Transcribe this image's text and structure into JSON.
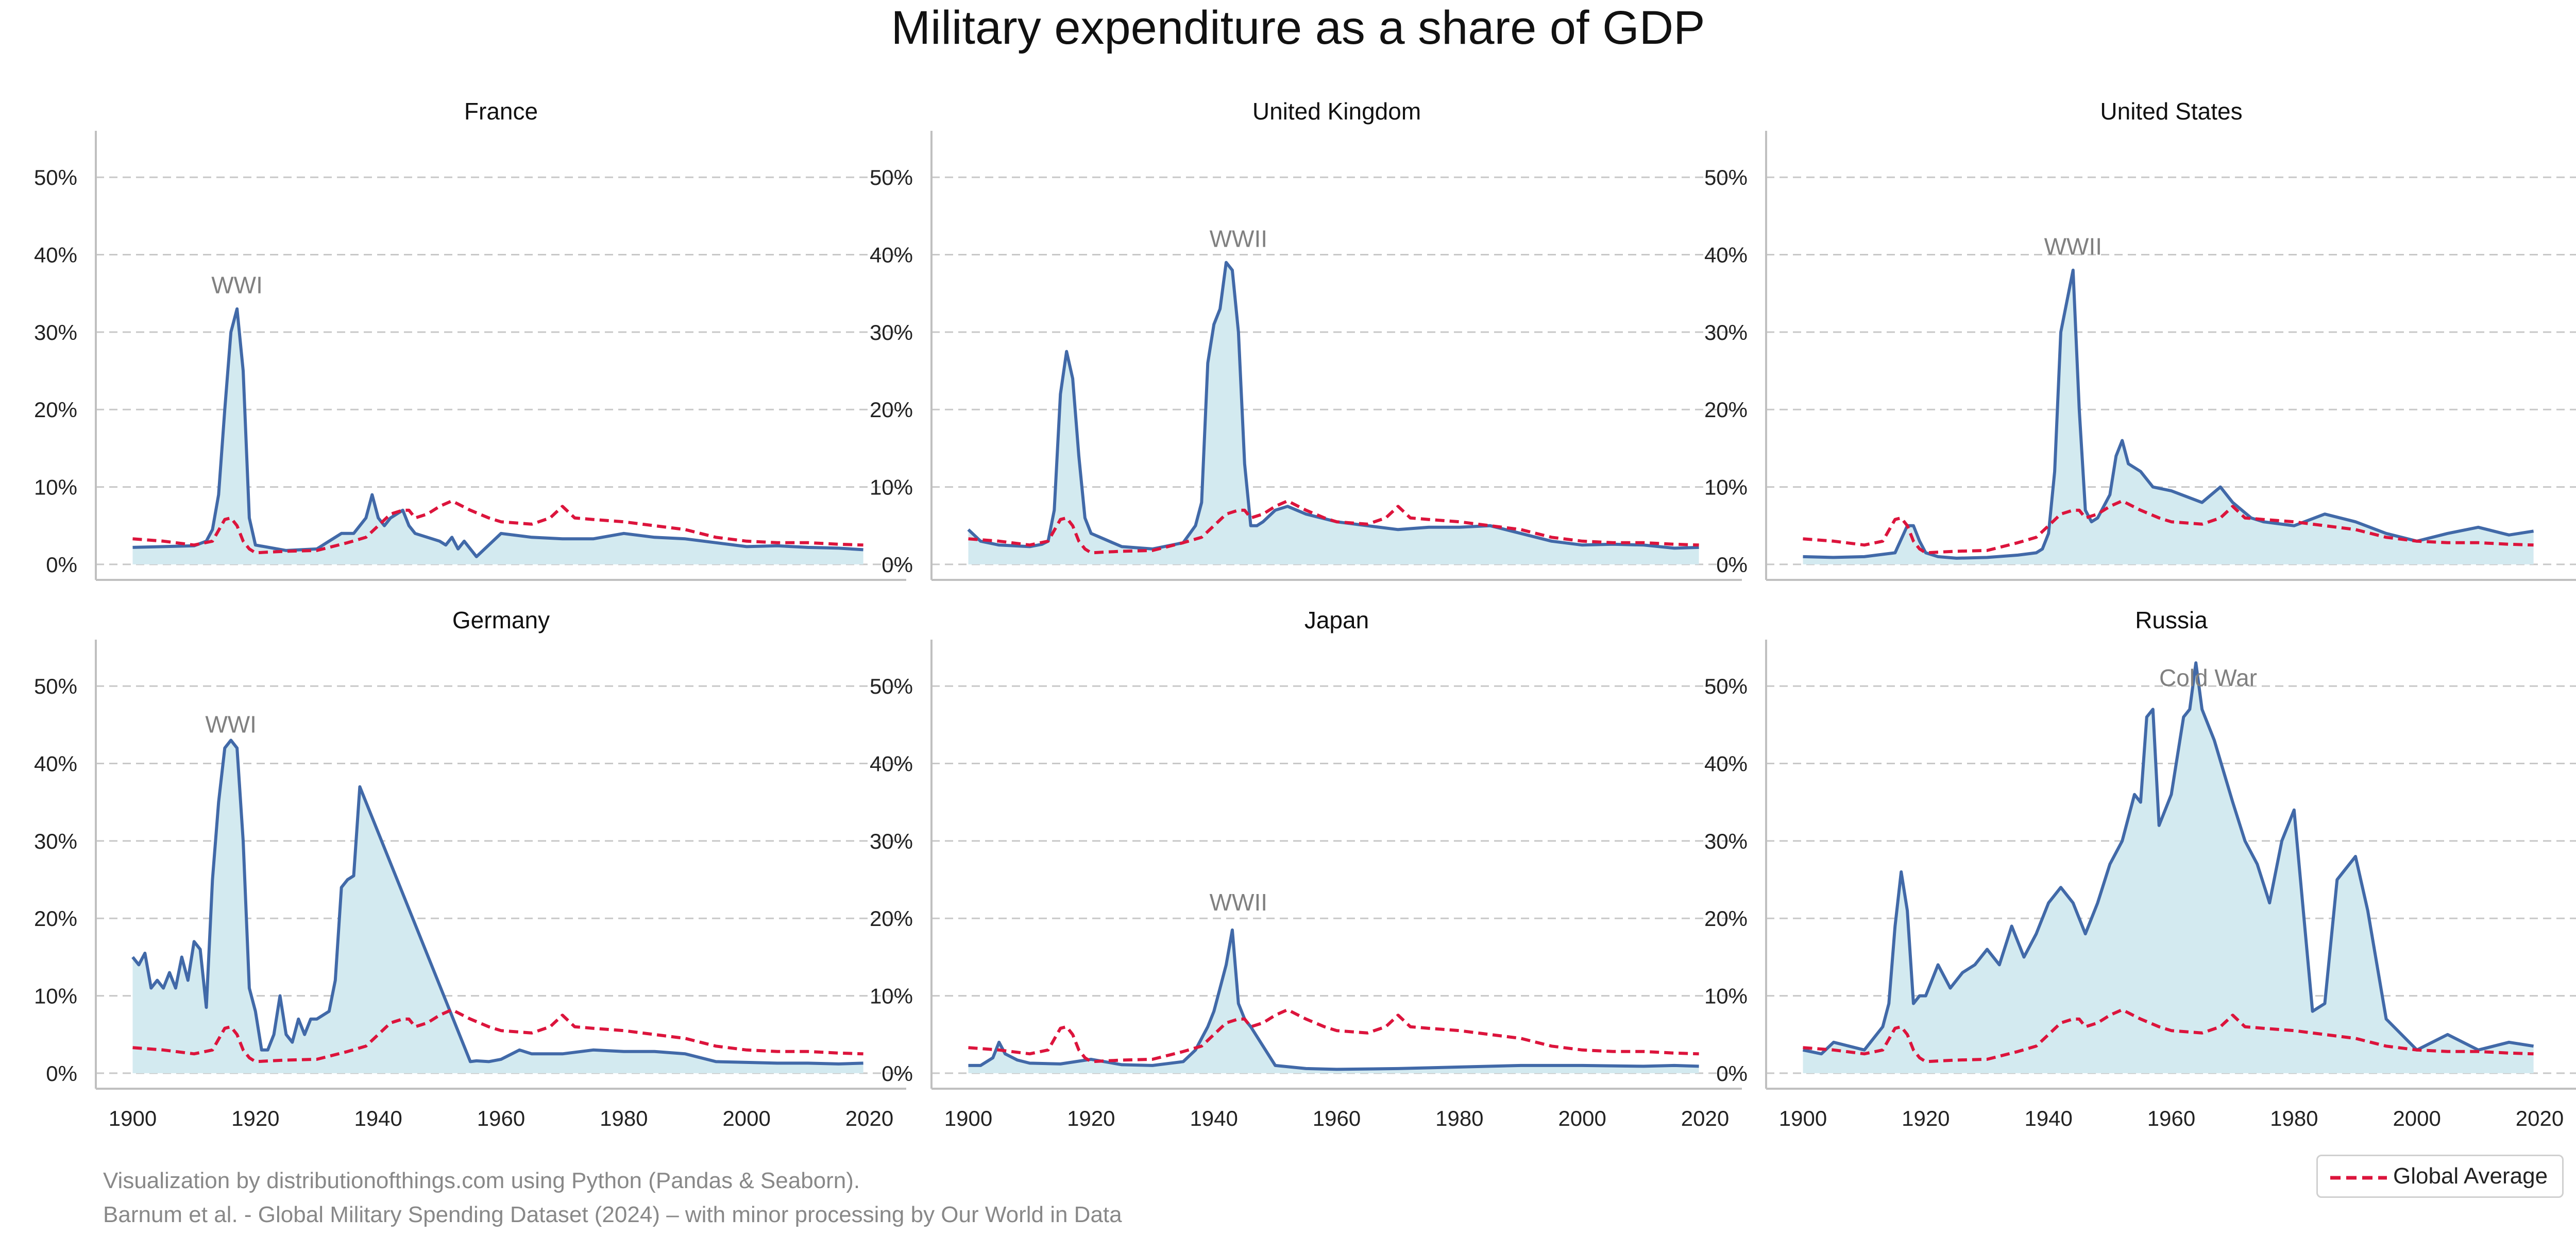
{
  "title": "Military expenditure as a share of GDP",
  "credits": [
    "Visualization by distributionofthings.com using Python (Pandas & Seaborn).",
    "Barnum et al. - Global Military Spending Dataset (2024) – with minor processing by Our World in Data"
  ],
  "legend": {
    "label": "Global Average"
  },
  "colors": {
    "country_line": "#4169a8",
    "country_fill": "#d3eaf0",
    "global_line": "#dc143c",
    "grid": "#c8c8c8",
    "annotation": "#808080"
  },
  "chart_data": [
    {
      "type": "area",
      "title": "France",
      "ylim": [
        -2,
        56
      ],
      "xlim": [
        1894,
        2026
      ],
      "yticks": [
        0,
        10,
        20,
        30,
        40,
        50
      ],
      "ytick_labels": [
        "0%",
        "10%",
        "20%",
        "30%",
        "40%",
        "50%"
      ],
      "xticks": [
        1900,
        1920,
        1940,
        1960,
        1980,
        2000,
        2020
      ],
      "grid": "y-dashed",
      "annotation": {
        "text": "WWI",
        "x": 1917,
        "y": 35
      },
      "series": [
        {
          "x": [
            1900,
            1905,
            1910,
            1912,
            1913,
            1914,
            1915,
            1916,
            1917,
            1918,
            1919,
            1920,
            1925,
            1930,
            1932,
            1934,
            1936,
            1938,
            1939,
            1940,
            1941,
            1942,
            1944,
            1945,
            1946,
            1948,
            1950,
            1951,
            1952,
            1953,
            1954,
            1955,
            1956,
            1960,
            1965,
            1970,
            1975,
            1980,
            1985,
            1990,
            1995,
            2000,
            2005,
            2010,
            2015,
            2019
          ],
          "values": [
            2.2,
            2.3,
            2.4,
            3,
            4.5,
            9,
            20,
            30,
            33,
            25,
            6,
            2.5,
            1.8,
            2,
            3,
            4,
            4,
            6,
            9,
            6,
            5,
            6,
            7,
            5,
            4,
            3.5,
            3,
            2.5,
            3.5,
            2,
            3,
            2,
            1,
            4,
            3.5,
            3.3,
            3.3,
            4,
            3.5,
            3.3,
            2.8,
            2.3,
            2.4,
            2.2,
            2.1,
            1.9
          ]
        }
      ]
    },
    {
      "type": "area",
      "title": "United Kingdom",
      "ylim": [
        -2,
        56
      ],
      "xlim": [
        1894,
        2026
      ],
      "yticks": [
        0,
        10,
        20,
        30,
        40,
        50
      ],
      "ytick_labels": [
        "0%",
        "10%",
        "20%",
        "30%",
        "40%",
        "50%"
      ],
      "xticks": [
        1900,
        1920,
        1940,
        1960,
        1980,
        2000,
        2020
      ],
      "grid": "y-dashed",
      "annotation": {
        "text": "WWII",
        "x": 1944,
        "y": 41
      },
      "series": [
        {
          "x": [
            1900,
            1902,
            1905,
            1910,
            1912,
            1913,
            1914,
            1915,
            1916,
            1917,
            1918,
            1919,
            1920,
            1925,
            1930,
            1935,
            1937,
            1938,
            1939,
            1940,
            1941,
            1942,
            1943,
            1944,
            1945,
            1946,
            1947,
            1948,
            1950,
            1952,
            1955,
            1960,
            1965,
            1970,
            1975,
            1980,
            1985,
            1990,
            1995,
            2000,
            2005,
            2010,
            2015,
            2019
          ],
          "values": [
            4.5,
            3,
            2.5,
            2.3,
            2.6,
            3,
            7,
            22,
            27.5,
            24,
            14,
            6,
            4,
            2.3,
            2,
            2.8,
            5,
            8,
            26,
            31,
            33,
            39,
            38,
            30,
            13,
            5,
            5,
            5.5,
            7,
            7.5,
            6.5,
            5.5,
            5,
            4.5,
            4.8,
            4.8,
            5,
            4,
            3,
            2.5,
            2.6,
            2.5,
            2.1,
            2.2
          ]
        }
      ]
    },
    {
      "type": "area",
      "title": "United States",
      "ylim": [
        -2,
        56
      ],
      "xlim": [
        1894,
        2026
      ],
      "yticks": [
        0,
        10,
        20,
        30,
        40,
        50
      ],
      "ytick_labels": [
        "0%",
        "10%",
        "20%",
        "30%",
        "40%",
        "50%"
      ],
      "xticks": [
        1900,
        1920,
        1940,
        1960,
        1980,
        2000,
        2020
      ],
      "grid": "y-dashed",
      "annotation": {
        "text": "WWII",
        "x": 1944,
        "y": 40
      },
      "series": [
        {
          "x": [
            1900,
            1905,
            1910,
            1915,
            1917,
            1918,
            1919,
            1920,
            1922,
            1925,
            1930,
            1935,
            1938,
            1939,
            1940,
            1941,
            1942,
            1943,
            1944,
            1945,
            1946,
            1947,
            1948,
            1950,
            1951,
            1952,
            1953,
            1955,
            1957,
            1960,
            1965,
            1968,
            1970,
            1973,
            1975,
            1980,
            1985,
            1990,
            1995,
            2000,
            2005,
            2010,
            2015,
            2019
          ],
          "values": [
            1,
            0.9,
            1,
            1.5,
            5,
            5,
            3,
            1.5,
            1,
            0.8,
            0.9,
            1.2,
            1.5,
            2,
            4,
            12,
            30,
            34,
            38,
            20,
            7,
            5.5,
            6,
            9,
            14,
            16,
            13,
            12,
            10,
            9.5,
            8,
            10,
            8,
            6,
            5.5,
            5,
            6.5,
            5.5,
            4,
            3,
            4,
            4.8,
            3.8,
            4.3
          ]
        }
      ]
    },
    {
      "type": "area",
      "title": "Germany",
      "ylim": [
        -2,
        56
      ],
      "xlim": [
        1894,
        2026
      ],
      "yticks": [
        0,
        10,
        20,
        30,
        40,
        50
      ],
      "ytick_labels": [
        "0%",
        "10%",
        "20%",
        "30%",
        "40%",
        "50%"
      ],
      "xticks": [
        1900,
        1920,
        1940,
        1960,
        1980,
        2000,
        2020
      ],
      "grid": "y-dashed",
      "annotation": {
        "text": "WWI",
        "x": 1916,
        "y": 44
      },
      "series": [
        {
          "x": [
            1900,
            1901,
            1902,
            1903,
            1904,
            1905,
            1906,
            1907,
            1908,
            1909,
            1910,
            1911,
            1912,
            1913,
            1914,
            1915,
            1916,
            1917,
            1918,
            1919,
            1920,
            1921,
            1922,
            1923,
            1924,
            1925,
            1926,
            1927,
            1928,
            1929,
            1930,
            1931,
            1932,
            1933,
            1934,
            1935,
            1936,
            1937,
            1955,
            1956,
            1958,
            1960,
            1963,
            1965,
            1970,
            1975,
            1980,
            1985,
            1990,
            1995,
            2000,
            2005,
            2010,
            2015,
            2019
          ],
          "values": [
            15,
            14,
            15.5,
            11,
            12,
            11,
            13,
            11,
            15,
            12,
            17,
            16,
            8.5,
            25,
            35,
            42,
            43,
            42,
            30,
            11,
            8,
            3,
            3,
            5,
            10,
            5,
            4,
            7,
            5,
            7,
            7,
            7.5,
            8,
            12,
            24,
            25,
            25.5,
            37,
            1.5,
            1.6,
            1.5,
            1.8,
            3,
            2.5,
            2.5,
            3,
            2.8,
            2.8,
            2.5,
            1.5,
            1.4,
            1.3,
            1.3,
            1.2,
            1.3
          ]
        }
      ]
    },
    {
      "type": "area",
      "title": "Japan",
      "ylim": [
        -2,
        56
      ],
      "xlim": [
        1894,
        2026
      ],
      "yticks": [
        0,
        10,
        20,
        30,
        40,
        50
      ],
      "ytick_labels": [
        "0%",
        "10%",
        "20%",
        "30%",
        "40%",
        "50%"
      ],
      "xticks": [
        1900,
        1920,
        1940,
        1960,
        1980,
        2000,
        2020
      ],
      "grid": "y-dashed",
      "annotation": {
        "text": "WWII",
        "x": 1944,
        "y": 21
      },
      "series": [
        {
          "x": [
            1900,
            1902,
            1904,
            1905,
            1906,
            1908,
            1910,
            1915,
            1920,
            1925,
            1930,
            1935,
            1937,
            1938,
            1939,
            1940,
            1941,
            1942,
            1943,
            1944,
            1945,
            1946,
            1950,
            1955,
            1960,
            1970,
            1980,
            1990,
            2000,
            2010,
            2015,
            2019
          ],
          "values": [
            1,
            1,
            2,
            4,
            2.5,
            1.7,
            1.3,
            1.2,
            1.8,
            1.1,
            1,
            1.5,
            3,
            4.5,
            6,
            8,
            11,
            14,
            18.5,
            9,
            7,
            6,
            1,
            0.6,
            0.5,
            0.6,
            0.8,
            1,
            1,
            0.9,
            1,
            0.9
          ]
        }
      ]
    },
    {
      "type": "area",
      "title": "Russia",
      "ylim": [
        -2,
        56
      ],
      "xlim": [
        1894,
        2026
      ],
      "yticks": [
        0,
        10,
        20,
        30,
        40,
        50
      ],
      "ytick_labels": [
        "0%",
        "10%",
        "20%",
        "30%",
        "40%",
        "50%"
      ],
      "xticks": [
        1900,
        1920,
        1940,
        1960,
        1980,
        2000,
        2020
      ],
      "grid": "y-dashed",
      "annotation": {
        "text": "Cold War",
        "x": 1966,
        "y": 50
      },
      "series": [
        {
          "x": [
            1900,
            1903,
            1905,
            1910,
            1913,
            1914,
            1915,
            1916,
            1917,
            1918,
            1919,
            1920,
            1922,
            1924,
            1926,
            1928,
            1930,
            1932,
            1934,
            1936,
            1938,
            1940,
            1942,
            1944,
            1946,
            1948,
            1950,
            1952,
            1954,
            1955,
            1956,
            1957,
            1958,
            1960,
            1962,
            1963,
            1964,
            1965,
            1967,
            1970,
            1972,
            1974,
            1976,
            1978,
            1980,
            1983,
            1985,
            1987,
            1990,
            1992,
            1995,
            2000,
            2005,
            2010,
            2015,
            2019
          ],
          "values": [
            3,
            2.5,
            4,
            3,
            6,
            9,
            19,
            26,
            21,
            9,
            10,
            10,
            14,
            11,
            13,
            14,
            16,
            14,
            19,
            15,
            18,
            22,
            24,
            22,
            18,
            22,
            27,
            30,
            36,
            35,
            46,
            47,
            32,
            36,
            46,
            47,
            53,
            47,
            43,
            35,
            30,
            27,
            22,
            30,
            34,
            8,
            9,
            25,
            28,
            21,
            7,
            3,
            5,
            3,
            4,
            3.5
          ]
        },
        {
          "name": "Global Average",
          "x": [
            1900,
            1905,
            1910,
            1913,
            1915,
            1916,
            1917,
            1918,
            1919,
            1920,
            1925,
            1930,
            1935,
            1938,
            1940,
            1942,
            1944,
            1945,
            1946,
            1948,
            1950,
            1952,
            1955,
            1958,
            1960,
            1965,
            1968,
            1970,
            1972,
            1975,
            1980,
            1985,
            1990,
            1995,
            2000,
            2005,
            2010,
            2015,
            2019
          ],
          "values": [
            3.3,
            3,
            2.5,
            3,
            5.8,
            6,
            5,
            3,
            2,
            1.5,
            1.7,
            1.8,
            2.8,
            3.5,
            5,
            6.5,
            7,
            7,
            6,
            6.5,
            7.5,
            8.2,
            7,
            6,
            5.5,
            5.2,
            6,
            7.5,
            6,
            5.8,
            5.5,
            5,
            4.5,
            3.5,
            3,
            2.8,
            2.8,
            2.6,
            2.5
          ]
        }
      ]
    }
  ]
}
